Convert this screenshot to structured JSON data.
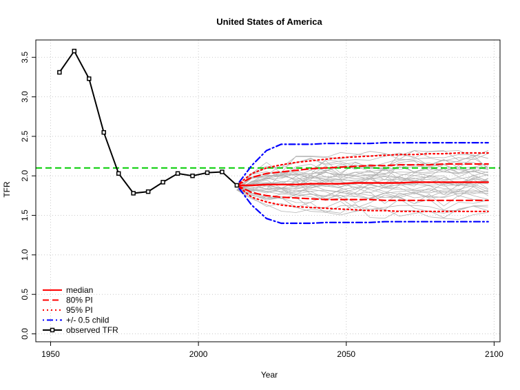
{
  "chart_data": {
    "type": "line",
    "title": "United States of America",
    "xlabel": "Year",
    "ylabel": "TFR",
    "xlim": [
      1945,
      2102
    ],
    "ylim": [
      -0.1,
      3.72
    ],
    "xticks": [
      1950,
      2000,
      2050,
      2100
    ],
    "yticks": [
      0.0,
      0.5,
      1.0,
      1.5,
      2.0,
      2.5,
      3.0,
      3.5
    ],
    "xtick_labels": [
      "1950",
      "2000",
      "2050",
      "2100"
    ],
    "ytick_labels": [
      "0.0",
      "0.5",
      "1.0",
      "1.5",
      "2.0",
      "2.5",
      "3.0",
      "3.5"
    ],
    "grid": true,
    "replacement_level": 2.1,
    "observed": {
      "name": "observed TFR",
      "x": [
        1953,
        1958,
        1963,
        1968,
        1973,
        1978,
        1983,
        1988,
        1993,
        1998,
        2003,
        2008,
        2013
      ],
      "y": [
        3.31,
        3.58,
        3.23,
        2.55,
        2.03,
        1.78,
        1.8,
        1.92,
        2.03,
        2.0,
        2.04,
        2.05,
        1.88
      ]
    },
    "years": [
      2013,
      2018,
      2023,
      2028,
      2033,
      2038,
      2043,
      2048,
      2053,
      2058,
      2063,
      2068,
      2073,
      2078,
      2083,
      2088,
      2093,
      2098
    ],
    "median": [
      1.88,
      1.88,
      1.89,
      1.89,
      1.89,
      1.9,
      1.9,
      1.9,
      1.91,
      1.91,
      1.91,
      1.91,
      1.92,
      1.92,
      1.92,
      1.92,
      1.92,
      1.92
    ],
    "pi80_upper": [
      1.88,
      1.98,
      2.03,
      2.05,
      2.07,
      2.09,
      2.1,
      2.11,
      2.12,
      2.13,
      2.13,
      2.14,
      2.14,
      2.14,
      2.15,
      2.15,
      2.15,
      2.15
    ],
    "pi80_lower": [
      1.88,
      1.79,
      1.75,
      1.73,
      1.72,
      1.71,
      1.7,
      1.7,
      1.7,
      1.7,
      1.69,
      1.69,
      1.69,
      1.69,
      1.69,
      1.69,
      1.69,
      1.69
    ],
    "pi95_upper": [
      1.88,
      2.03,
      2.1,
      2.14,
      2.17,
      2.19,
      2.21,
      2.23,
      2.24,
      2.25,
      2.26,
      2.27,
      2.27,
      2.28,
      2.28,
      2.29,
      2.29,
      2.29
    ],
    "pi95_lower": [
      1.88,
      1.73,
      1.67,
      1.63,
      1.61,
      1.6,
      1.59,
      1.58,
      1.57,
      1.56,
      1.56,
      1.55,
      1.55,
      1.55,
      1.55,
      1.55,
      1.55,
      1.55
    ],
    "half_child_upper": [
      1.88,
      2.13,
      2.32,
      2.4,
      2.4,
      2.4,
      2.41,
      2.41,
      2.41,
      2.41,
      2.42,
      2.42,
      2.42,
      2.42,
      2.42,
      2.42,
      2.42,
      2.42
    ],
    "half_child_lower": [
      1.88,
      1.63,
      1.46,
      1.4,
      1.4,
      1.4,
      1.41,
      1.41,
      1.41,
      1.41,
      1.42,
      1.42,
      1.42,
      1.42,
      1.42,
      1.42,
      1.42,
      1.42
    ],
    "trajectory_count": 40,
    "legend_position": "bottom-left",
    "legend": [
      {
        "label": "median",
        "color": "#ff0000",
        "style": "solid"
      },
      {
        "label": "80% PI",
        "color": "#ff0000",
        "style": "dashed"
      },
      {
        "label": "95% PI",
        "color": "#ff0000",
        "style": "dotted"
      },
      {
        "label": "+/- 0.5 child",
        "color": "#0000ff",
        "style": "dotdash"
      },
      {
        "label": "observed TFR",
        "color": "#000000",
        "style": "solid-marker"
      }
    ],
    "colors": {
      "median": "#ff0000",
      "pi": "#ff0000",
      "half_child": "#0000ff",
      "observed": "#000000",
      "trajectory": "#b3b3b3",
      "replacement": "#00cd00",
      "grid": "#c8c8c8"
    }
  }
}
